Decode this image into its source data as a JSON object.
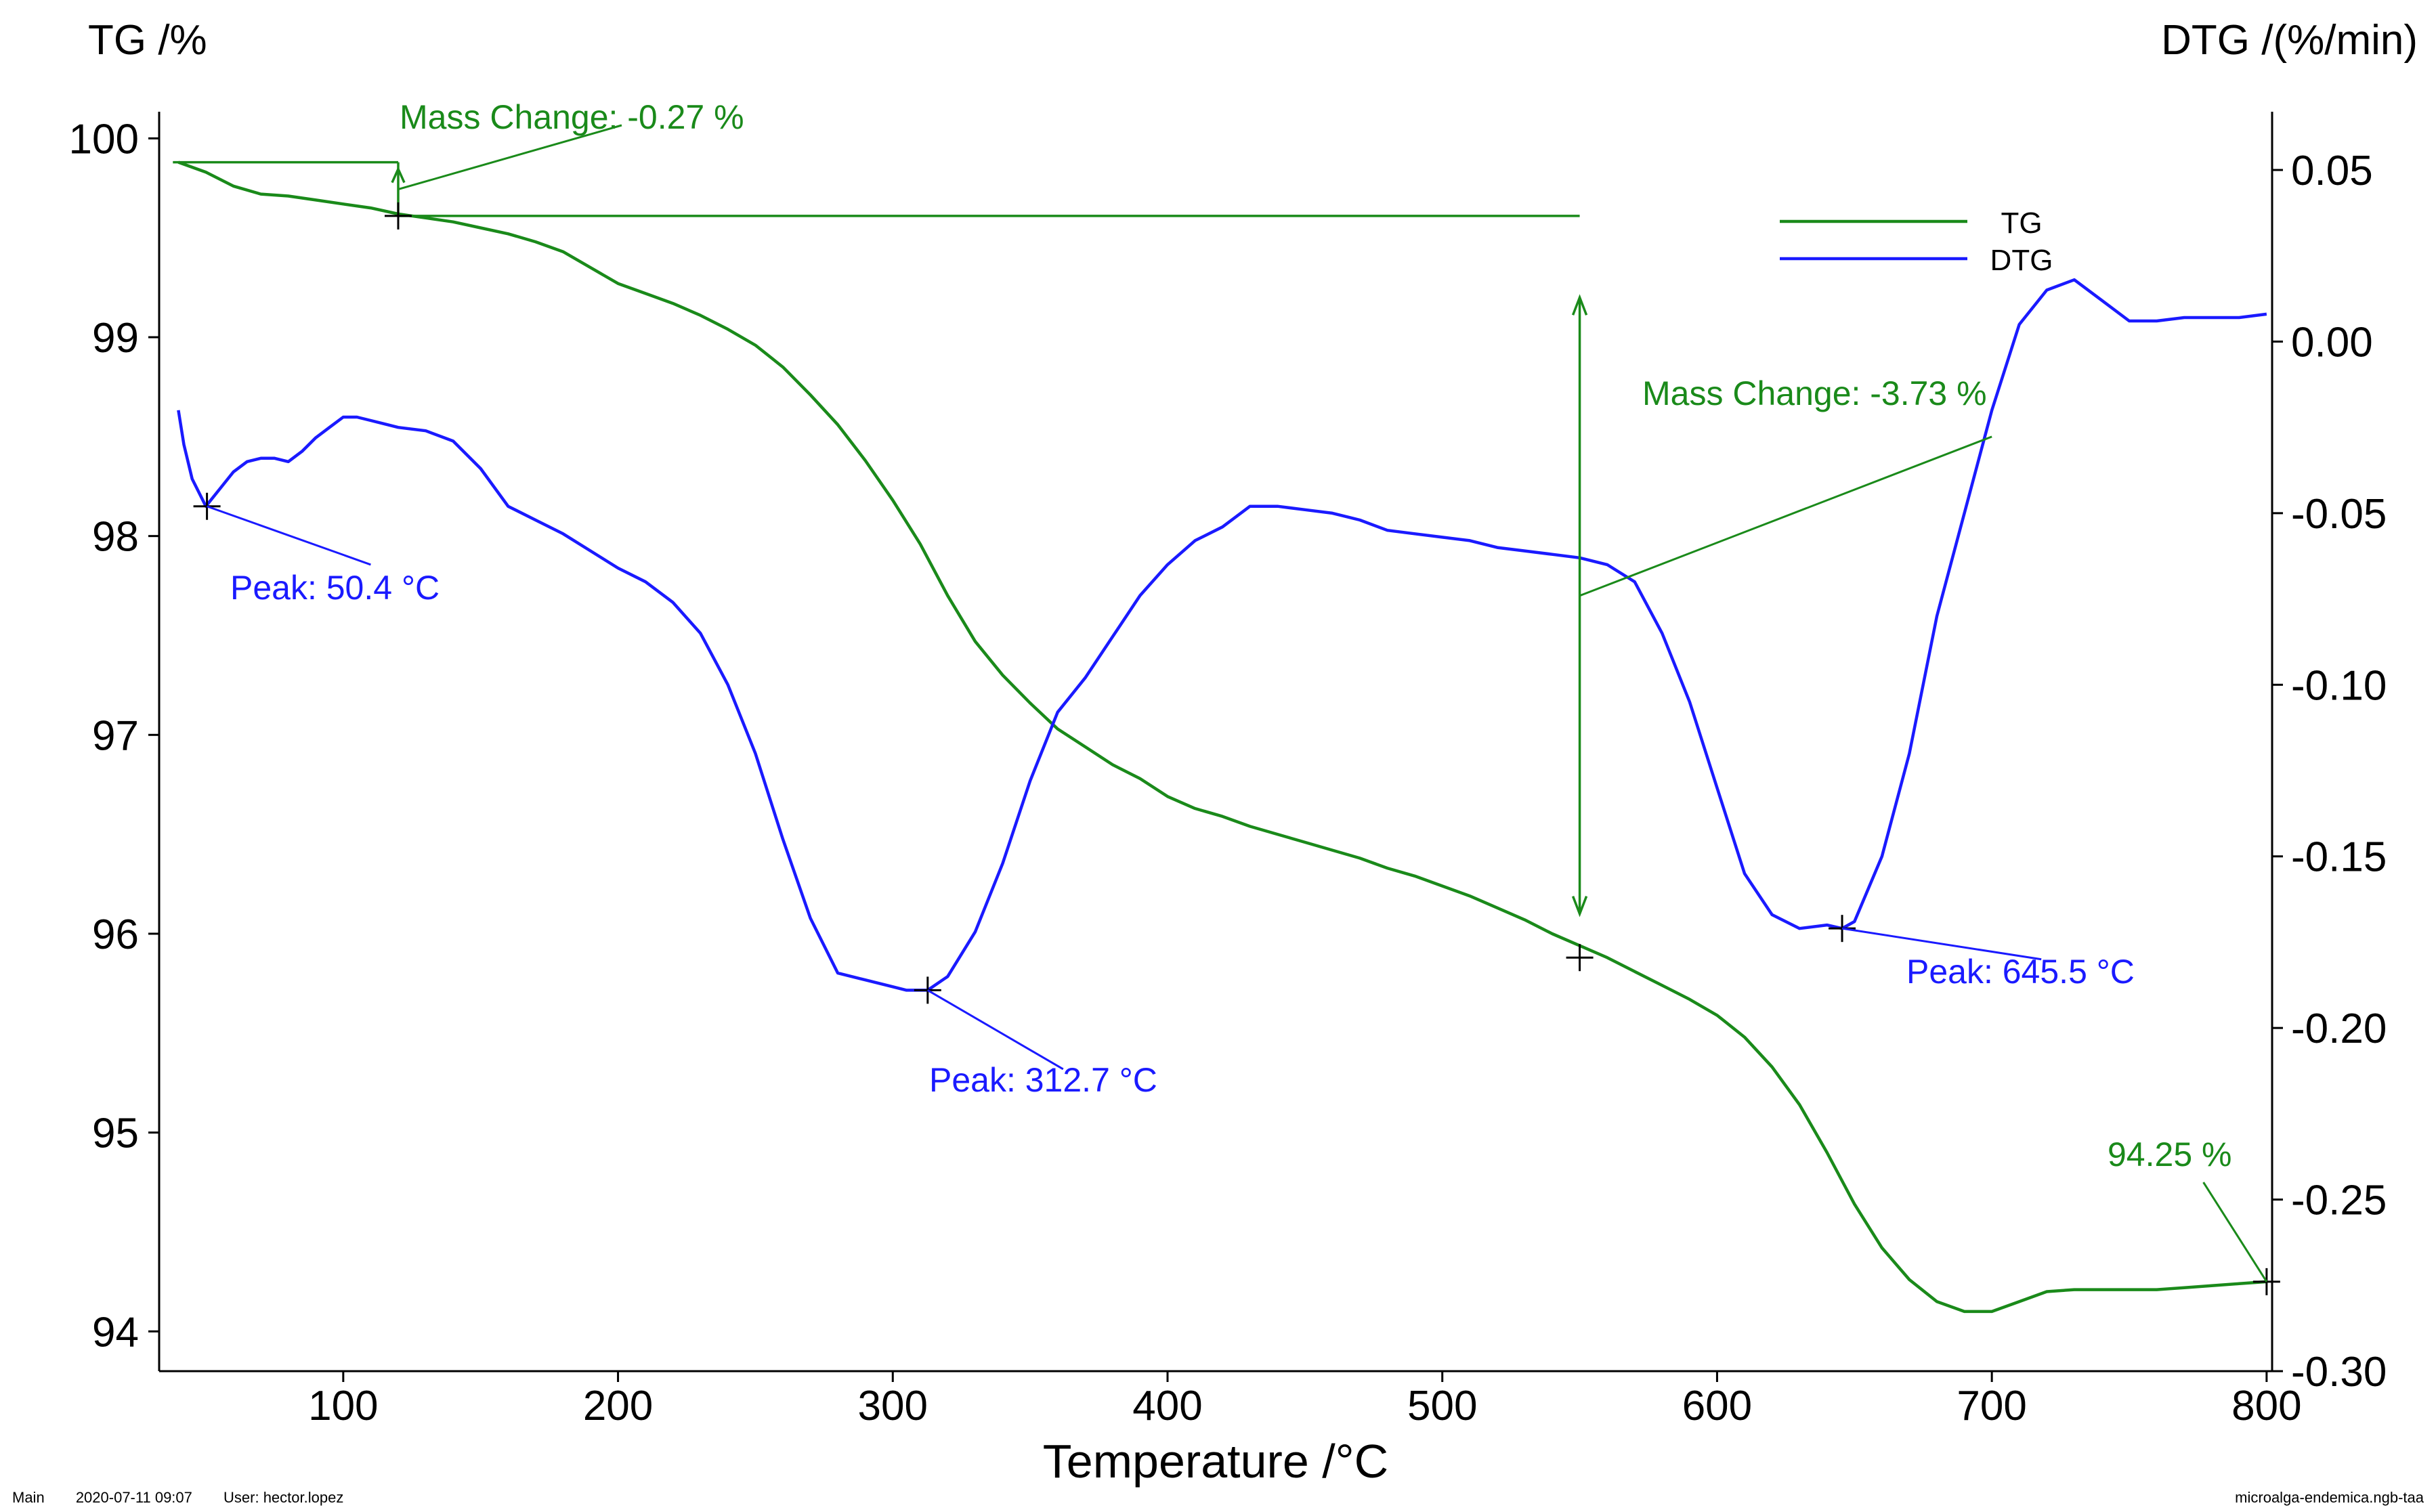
{
  "chart_data": {
    "type": "line",
    "title": "",
    "xlabel": "Temperature /°C",
    "ylabel_left": "TG /%",
    "ylabel_right": "DTG /(%/min)",
    "xlim": [
      33,
      802
    ],
    "ylim_left": [
      93.8,
      100.1
    ],
    "ylim_right": [
      -0.3,
      0.065
    ],
    "x_ticks": [
      100,
      200,
      300,
      400,
      500,
      600,
      700,
      800
    ],
    "y_left_ticks": [
      94,
      95,
      96,
      97,
      98,
      99,
      100
    ],
    "y_right_ticks": [
      "0.05",
      "0.00",
      "-0.05",
      "-0.10",
      "-0.15",
      "-0.20",
      "-0.25",
      "-0.30"
    ],
    "legend": {
      "position": "top-right",
      "entries": [
        {
          "name": "TG",
          "color": "#1a8a1a"
        },
        {
          "name": "DTG",
          "color": "#1a1aff"
        }
      ]
    },
    "series": [
      {
        "name": "TG",
        "axis": "left",
        "color": "#1a8a1a",
        "x": [
          40,
          50,
          60,
          70,
          80,
          90,
          100,
          110,
          120,
          130,
          140,
          150,
          160,
          170,
          180,
          190,
          200,
          210,
          220,
          230,
          240,
          250,
          260,
          270,
          280,
          290,
          300,
          310,
          320,
          330,
          340,
          350,
          360,
          370,
          380,
          390,
          400,
          410,
          420,
          430,
          440,
          450,
          460,
          470,
          480,
          490,
          500,
          510,
          520,
          530,
          540,
          550,
          560,
          570,
          580,
          590,
          600,
          610,
          620,
          630,
          640,
          650,
          660,
          670,
          680,
          690,
          700,
          710,
          720,
          730,
          740,
          750,
          760,
          770,
          780,
          790,
          800
        ],
        "y": [
          99.88,
          99.83,
          99.76,
          99.72,
          99.71,
          99.69,
          99.67,
          99.65,
          99.62,
          99.6,
          99.58,
          99.55,
          99.52,
          99.48,
          99.43,
          99.35,
          99.27,
          99.22,
          99.17,
          99.11,
          99.04,
          98.96,
          98.85,
          98.71,
          98.56,
          98.38,
          98.18,
          97.96,
          97.7,
          97.47,
          97.3,
          97.16,
          97.03,
          96.94,
          96.85,
          96.78,
          96.69,
          96.63,
          96.59,
          96.54,
          96.5,
          96.46,
          96.42,
          96.38,
          96.33,
          96.29,
          96.24,
          96.19,
          96.13,
          96.07,
          96.0,
          95.94,
          95.88,
          95.81,
          95.74,
          95.67,
          95.59,
          95.48,
          95.33,
          95.14,
          94.9,
          94.64,
          94.42,
          94.26,
          94.15,
          94.1,
          94.1,
          94.15,
          94.2,
          94.21,
          94.21,
          94.21,
          94.21,
          94.22,
          94.23,
          94.24,
          94.25
        ]
      },
      {
        "name": "DTG",
        "axis": "right",
        "color": "#1a1aff",
        "x": [
          40,
          42,
          45,
          50,
          55,
          60,
          65,
          70,
          75,
          80,
          85,
          90,
          95,
          100,
          105,
          110,
          115,
          120,
          130,
          140,
          150,
          160,
          170,
          180,
          190,
          200,
          210,
          220,
          230,
          240,
          250,
          260,
          270,
          280,
          290,
          300,
          305,
          312.7,
          320,
          330,
          340,
          350,
          360,
          370,
          380,
          390,
          400,
          410,
          420,
          430,
          440,
          450,
          460,
          470,
          480,
          490,
          500,
          510,
          520,
          530,
          540,
          550,
          560,
          570,
          580,
          590,
          600,
          610,
          620,
          630,
          640,
          645.5,
          650,
          660,
          670,
          680,
          690,
          700,
          710,
          720,
          730,
          740,
          750,
          760,
          770,
          780,
          790,
          800
        ],
        "y": [
          -0.02,
          -0.03,
          -0.04,
          -0.048,
          -0.043,
          -0.038,
          -0.035,
          -0.034,
          -0.034,
          -0.035,
          -0.032,
          -0.028,
          -0.025,
          -0.022,
          -0.022,
          -0.023,
          -0.024,
          -0.025,
          -0.026,
          -0.029,
          -0.037,
          -0.048,
          -0.052,
          -0.056,
          -0.061,
          -0.066,
          -0.07,
          -0.076,
          -0.085,
          -0.1,
          -0.12,
          -0.145,
          -0.168,
          -0.184,
          -0.186,
          -0.188,
          -0.189,
          -0.189,
          -0.185,
          -0.172,
          -0.152,
          -0.128,
          -0.108,
          -0.098,
          -0.086,
          -0.074,
          -0.065,
          -0.058,
          -0.054,
          -0.048,
          -0.048,
          -0.049,
          -0.05,
          -0.052,
          -0.055,
          -0.056,
          -0.057,
          -0.058,
          -0.06,
          -0.061,
          -0.062,
          -0.063,
          -0.065,
          -0.07,
          -0.085,
          -0.105,
          -0.13,
          -0.155,
          -0.167,
          -0.171,
          -0.17,
          -0.171,
          -0.169,
          -0.15,
          -0.12,
          -0.08,
          -0.05,
          -0.02,
          0.005,
          0.015,
          0.018,
          0.012,
          0.006,
          0.006,
          0.007,
          0.007,
          0.007,
          0.008
        ]
      }
    ],
    "annotations": [
      {
        "text": "Mass Change: -0.27 %",
        "color": "#1a8a1a",
        "range_x": [
          38,
          120
        ],
        "tg_from": 99.88,
        "tg_to": 99.61
      },
      {
        "text": "Mass Change: -3.73 %",
        "color": "#1a8a1a",
        "range_x": [
          120,
          550
        ],
        "tg_from": 99.61,
        "tg_to": 95.88
      },
      {
        "text": "Peak: 50.4 °C",
        "color": "#1a1aff",
        "x": 50.4,
        "dtg": -0.048
      },
      {
        "text": "Peak: 312.7 °C",
        "color": "#1a1aff",
        "x": 312.7,
        "dtg": -0.189
      },
      {
        "text": "Peak: 645.5 °C",
        "color": "#1a1aff",
        "x": 645.5,
        "dtg": -0.171
      },
      {
        "text": "94.25 %",
        "color": "#1a8a1a",
        "x": 800,
        "tg": 94.25
      }
    ]
  },
  "footer": {
    "left": [
      "Main",
      "2020-07-11 09:07",
      "User: hector.lopez"
    ],
    "right": "microalga-endemica.ngb-taa"
  }
}
